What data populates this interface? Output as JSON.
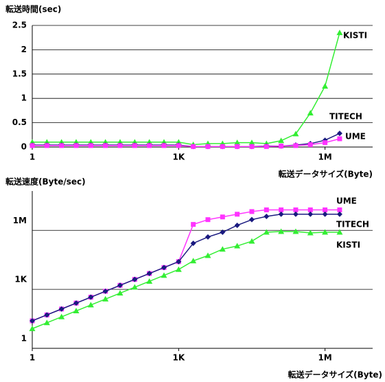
{
  "chart_data": [
    {
      "type": "line",
      "title": "転送時間(sec)",
      "x_label": "転送データサイズ(Byte)",
      "x": [
        1,
        2,
        4,
        8,
        16,
        32,
        64,
        128,
        256,
        512,
        1024,
        2048,
        4096,
        8192,
        16384,
        32768,
        65536,
        131072,
        262144,
        524288,
        1048576,
        2097152
      ],
      "xscale": "log",
      "xlim": [
        1,
        10000000
      ],
      "xticks": [
        1,
        {
          "value": 1024,
          "label": "1K"
        },
        {
          "value": 1048576,
          "label": "1M"
        }
      ],
      "ylim": [
        0,
        2.5
      ],
      "yticks": [
        0,
        0.5,
        1,
        1.5,
        2,
        2.5
      ],
      "grid": true,
      "series": [
        {
          "name": "KISTI",
          "color": "#33ee33",
          "marker": "triangle",
          "values": [
            0.1,
            0.1,
            0.1,
            0.1,
            0.1,
            0.1,
            0.1,
            0.1,
            0.1,
            0.1,
            0.1,
            0.05,
            0.07,
            0.07,
            0.09,
            0.09,
            0.07,
            0.13,
            0.27,
            0.7,
            1.25,
            2.35
          ]
        },
        {
          "name": "TITECH",
          "color": "#1a1a80",
          "marker": "diamond",
          "values": [
            0.04,
            0.04,
            0.04,
            0.04,
            0.04,
            0.04,
            0.04,
            0.04,
            0.04,
            0.04,
            0.04,
            0.01,
            0.01,
            0.01,
            0.01,
            0.01,
            0.02,
            0.02,
            0.04,
            0.07,
            0.14,
            0.28
          ]
        },
        {
          "name": "UME",
          "color": "#ff33ff",
          "marker": "square",
          "values": [
            0.03,
            0.03,
            0.03,
            0.03,
            0.03,
            0.03,
            0.03,
            0.03,
            0.03,
            0.03,
            0.03,
            0.01,
            0.01,
            0.01,
            0.01,
            0.01,
            0.01,
            0.02,
            0.03,
            0.05,
            0.09,
            0.17
          ]
        }
      ]
    },
    {
      "type": "line",
      "title": "転送速度(Byte/sec)",
      "x_label": "転送データサイズ(Byte)",
      "x": [
        1,
        2,
        4,
        8,
        16,
        32,
        64,
        128,
        256,
        512,
        1024,
        2048,
        4096,
        8192,
        16384,
        32768,
        65536,
        131072,
        262144,
        524288,
        1048576,
        2097152
      ],
      "xscale": "log",
      "xlim": [
        1,
        10000000
      ],
      "xticks": [
        1,
        {
          "value": 1024,
          "label": "1K"
        },
        {
          "value": 1048576,
          "label": "1M"
        }
      ],
      "yscale": "log",
      "ylim": [
        1,
        100000000
      ],
      "yticks": [
        1,
        {
          "value": 1000,
          "label": "1K"
        },
        {
          "value": 1000000,
          "label": "1M"
        }
      ],
      "grid": true,
      "series": [
        {
          "name": "UME",
          "color": "#ff33ff",
          "marker": "square",
          "values": [
            25,
            50,
            100,
            200,
            400,
            800,
            1600,
            3200,
            6400,
            12800,
            25600,
            2000000,
            3500000,
            4800000,
            6600000,
            9000000,
            11000000,
            11000000,
            11000000,
            11000000,
            11000000,
            11000000
          ]
        },
        {
          "name": "TITECH",
          "color": "#1a1a80",
          "marker": "diamond",
          "values": [
            25,
            50,
            100,
            200,
            400,
            800,
            1600,
            3200,
            6400,
            12800,
            25600,
            220000,
            460000,
            800000,
            1800000,
            3500000,
            5100000,
            6600000,
            6600000,
            6600000,
            6600000,
            6600000
          ]
        },
        {
          "name": "KISTI",
          "color": "#33ee33",
          "marker": "triangle",
          "values": [
            10,
            20,
            40,
            80,
            160,
            320,
            640,
            1280,
            2560,
            5120,
            10240,
            28000,
            52000,
            110000,
            160000,
            280000,
            800000,
            870000,
            870000,
            740000,
            800000,
            800000
          ]
        }
      ]
    }
  ]
}
